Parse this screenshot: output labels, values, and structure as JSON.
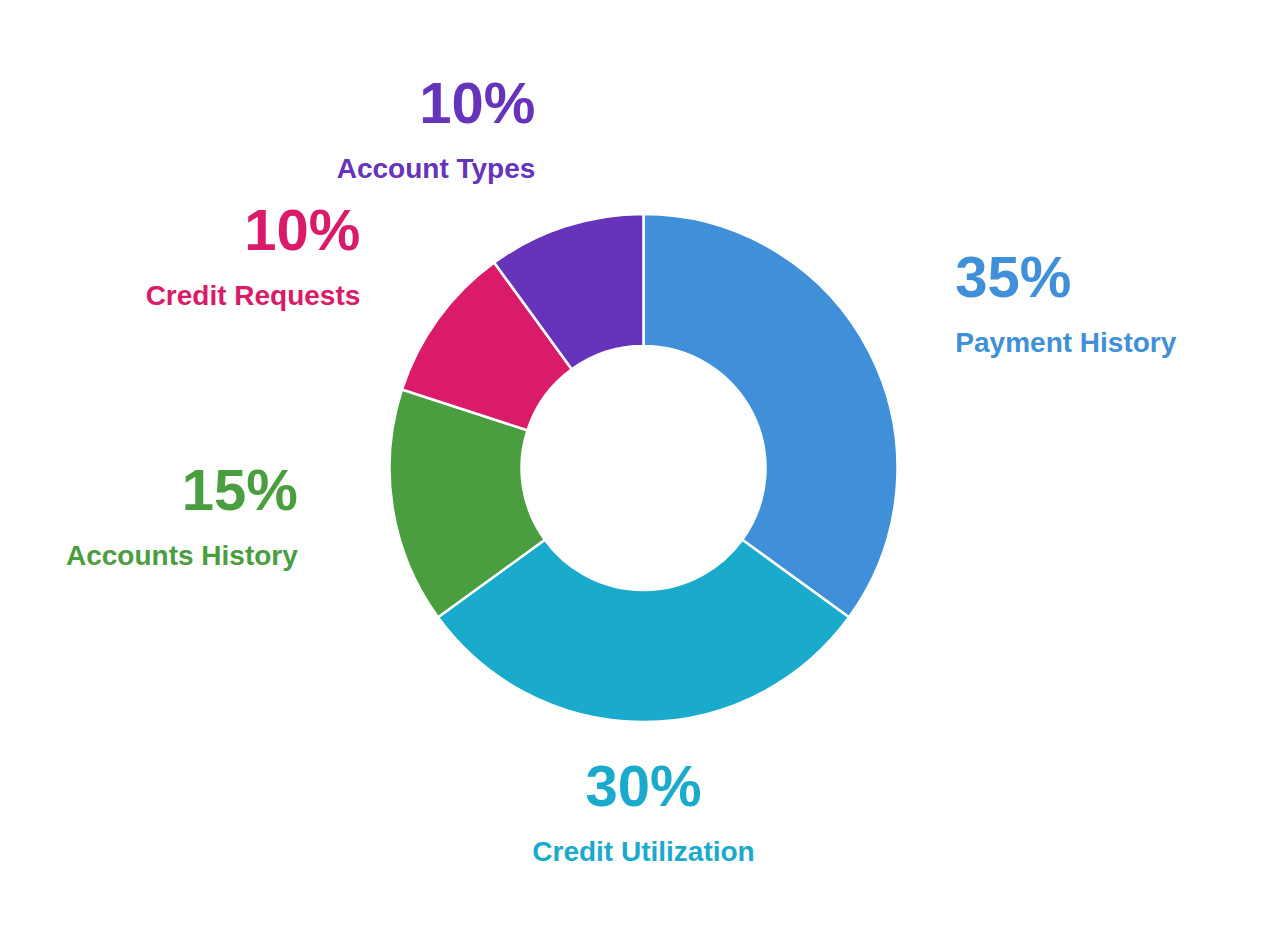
{
  "chart_data": {
    "type": "donut",
    "categories": [
      "Payment History",
      "Credit Utilization",
      "Accounts History",
      "Credit Requests",
      "Account Types"
    ],
    "values": [
      35,
      30,
      15,
      10,
      10
    ],
    "value_labels": [
      "35%",
      "30%",
      "15%",
      "10%",
      "10%"
    ],
    "colors": [
      "#4090D9",
      "#19AACC",
      "#4a9e3f",
      "#D91B6A",
      "#6633bb"
    ],
    "data_labels": true
  }
}
